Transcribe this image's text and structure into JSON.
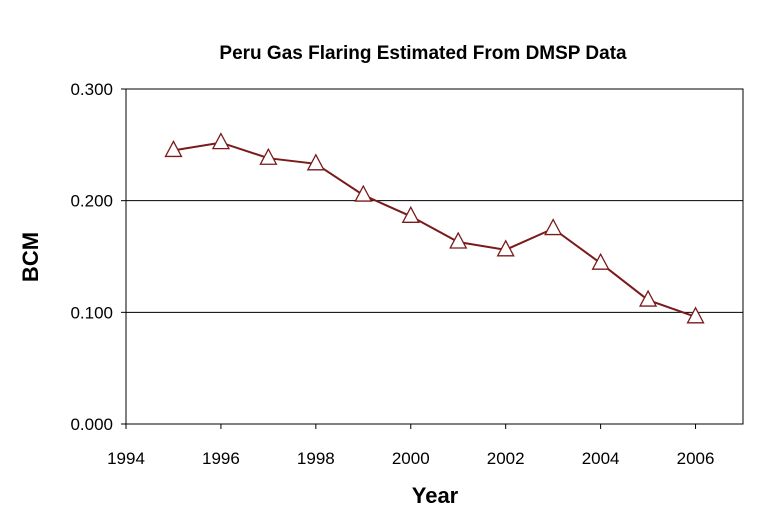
{
  "chart_data": {
    "type": "line",
    "title": "Peru Gas Flaring Estimated From DMSP Data",
    "xlabel": "Year",
    "ylabel": "BCM",
    "x": [
      1995,
      1996,
      1997,
      1998,
      1999,
      2000,
      2001,
      2002,
      2003,
      2004,
      2005,
      2006
    ],
    "series": [
      {
        "values": [
          0.245,
          0.252,
          0.238,
          0.233,
          0.205,
          0.186,
          0.163,
          0.156,
          0.175,
          0.144,
          0.111,
          0.096
        ],
        "color": "#7a1a1a",
        "marker": "triangle"
      }
    ],
    "xlim": [
      1994,
      2007
    ],
    "ylim": [
      0,
      0.3
    ],
    "x_ticks": [
      1994,
      1996,
      1998,
      2000,
      2002,
      2004,
      2006
    ],
    "y_ticks": [
      0,
      0.1,
      0.2,
      0.3
    ],
    "y_tick_labels": [
      "0.000",
      "0.100",
      "0.200",
      "0.300"
    ],
    "grid": "horizontal",
    "legend": "none"
  }
}
